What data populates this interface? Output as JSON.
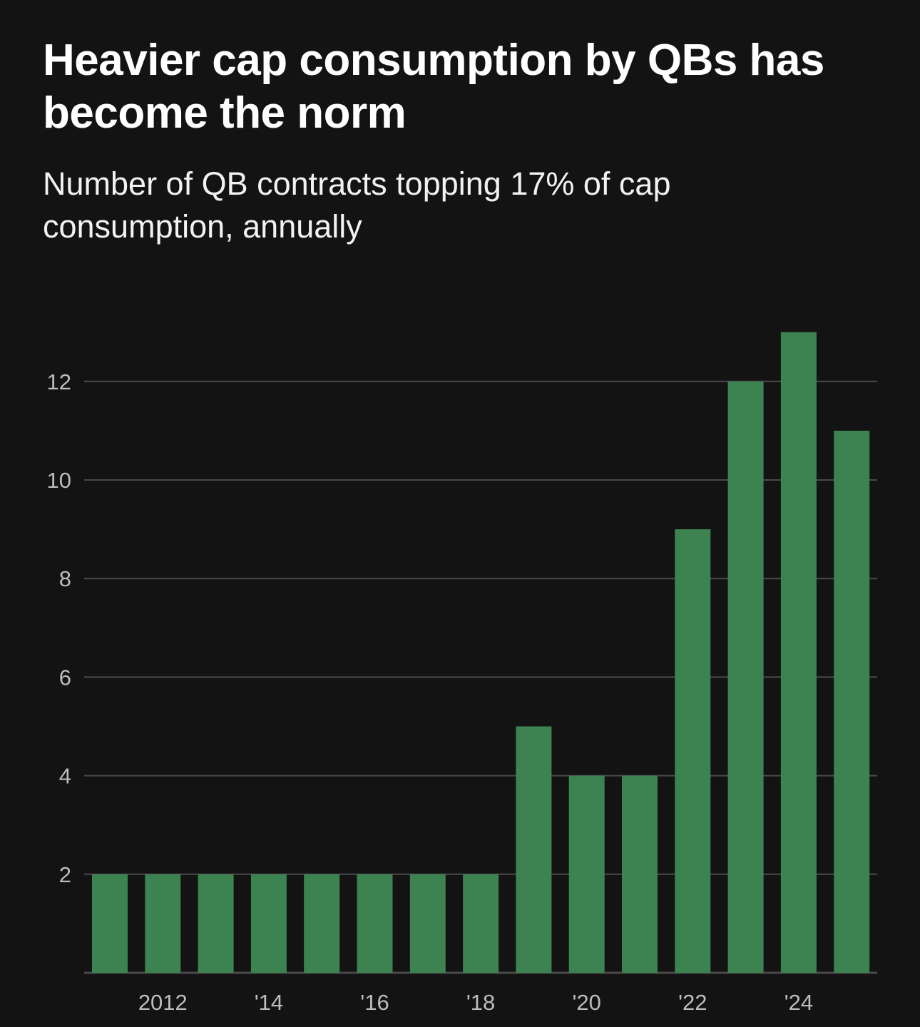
{
  "header": {
    "title": "Heavier cap consumption by QBs has become the norm",
    "subtitle": "Number of QB contracts topping 17% of cap consumption, annually"
  },
  "colors": {
    "background": "#131313",
    "bar": "#3c8351",
    "gridline": "#4a4a4a",
    "tick_label": "#bdbdbd"
  },
  "chart_data": {
    "type": "bar",
    "title": "Heavier cap consumption by QBs has become the norm",
    "subtitle": "Number of QB contracts topping 17% of cap consumption, annually",
    "xlabel": "",
    "ylabel": "",
    "categories": [
      "2011",
      "2012",
      "2013",
      "2014",
      "2015",
      "2016",
      "2017",
      "2018",
      "2019",
      "2020",
      "2021",
      "2022",
      "2023",
      "2024",
      "2025"
    ],
    "values": [
      2,
      2,
      2,
      2,
      2,
      2,
      2,
      2,
      5,
      4,
      4,
      9,
      12,
      13,
      11
    ],
    "x_tick_labels": [
      {
        "category": "2012",
        "label": "2012"
      },
      {
        "category": "2014",
        "label": "'14"
      },
      {
        "category": "2016",
        "label": "'16"
      },
      {
        "category": "2018",
        "label": "'18"
      },
      {
        "category": "2020",
        "label": "'20"
      },
      {
        "category": "2022",
        "label": "'22"
      },
      {
        "category": "2024",
        "label": "'24"
      }
    ],
    "y_ticks": [
      2,
      4,
      6,
      8,
      10,
      12
    ],
    "ylim": [
      0,
      12
    ],
    "grid": true,
    "legend": "none"
  }
}
